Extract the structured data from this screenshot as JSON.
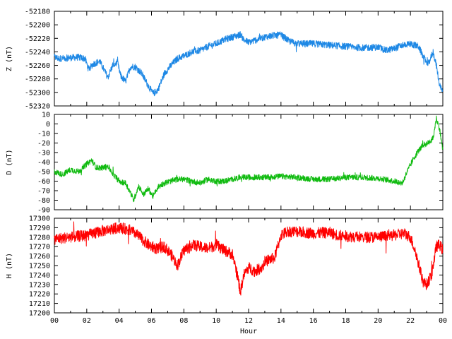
{
  "chart_data": [
    {
      "type": "line",
      "ylabel": "Z (nT)",
      "ylim": [
        -52320,
        -52180
      ],
      "yticks": [
        -52180,
        -52200,
        -52220,
        -52240,
        -52260,
        -52280,
        -52300,
        -52320
      ],
      "xlim": [
        0,
        24
      ],
      "color": "#1e88e5",
      "noise": 5,
      "series": [
        {
          "x": [
            0,
            0.3,
            0.8,
            1.5,
            1.9,
            2.1,
            2.4,
            2.8,
            3.1,
            3.3,
            3.6,
            3.9,
            4.1,
            4.4,
            4.7,
            5.0,
            5.4,
            5.8,
            6.1,
            6.4,
            6.8,
            7.2,
            7.6,
            8.0,
            8.5,
            9.0,
            9.5,
            10.0,
            10.5,
            11.0,
            11.3,
            11.5,
            11.7,
            12.0,
            12.5,
            13.0,
            13.5,
            14.0,
            14.5,
            15.0,
            16.0,
            17.0,
            18.0,
            19.0,
            20.0,
            20.5,
            21.0,
            21.5,
            22.0,
            22.5,
            22.8,
            23.1,
            23.4,
            23.6,
            23.8,
            24.0
          ],
          "values": [
            -52248,
            -52250,
            -52249,
            -52248,
            -52250,
            -52265,
            -52258,
            -52254,
            -52268,
            -52278,
            -52260,
            -52256,
            -52276,
            -52284,
            -52262,
            -52262,
            -52272,
            -52290,
            -52302,
            -52296,
            -52272,
            -52260,
            -52250,
            -52246,
            -52240,
            -52238,
            -52232,
            -52228,
            -52222,
            -52218,
            -52216,
            -52214,
            -52222,
            -52226,
            -52222,
            -52218,
            -52216,
            -52215,
            -52224,
            -52228,
            -52228,
            -52230,
            -52232,
            -52234,
            -52233,
            -52238,
            -52235,
            -52230,
            -52228,
            -52232,
            -52248,
            -52258,
            -52240,
            -52260,
            -52290,
            -52300
          ]
        }
      ]
    },
    {
      "type": "line",
      "ylabel": "D (nT)",
      "ylim": [
        -90,
        10
      ],
      "yticks": [
        10,
        0,
        -10,
        -20,
        -30,
        -40,
        -50,
        -60,
        -70,
        -80,
        -90
      ],
      "xlim": [
        0,
        24
      ],
      "color": "#11bb11",
      "noise": 3,
      "series": [
        {
          "x": [
            0,
            0.5,
            1.0,
            1.5,
            2.0,
            2.3,
            2.6,
            3.0,
            3.3,
            3.6,
            4.0,
            4.4,
            4.7,
            4.9,
            5.2,
            5.5,
            5.8,
            6.1,
            6.4,
            6.8,
            7.2,
            7.6,
            8.0,
            8.5,
            9.0,
            9.5,
            10.0,
            10.5,
            11.0,
            11.5,
            12.0,
            13.0,
            14.0,
            15.0,
            16.0,
            17.0,
            18.0,
            19.0,
            20.0,
            21.0,
            21.5,
            21.8,
            22.2,
            22.5,
            22.8,
            23.1,
            23.4,
            23.6,
            23.8,
            24.0
          ],
          "values": [
            -50,
            -53,
            -48,
            -50,
            -42,
            -38,
            -46,
            -46,
            -44,
            -52,
            -60,
            -62,
            -72,
            -80,
            -65,
            -74,
            -68,
            -76,
            -66,
            -62,
            -60,
            -58,
            -58,
            -60,
            -62,
            -58,
            -60,
            -60,
            -58,
            -56,
            -56,
            -56,
            -55,
            -56,
            -58,
            -58,
            -56,
            -56,
            -57,
            -60,
            -62,
            -50,
            -36,
            -28,
            -22,
            -20,
            -15,
            6,
            -5,
            -28
          ]
        }
      ]
    },
    {
      "type": "line",
      "ylabel": "H (nT)",
      "xlabel": "Hour",
      "ylim": [
        17200,
        17300
      ],
      "yticks": [
        17300,
        17290,
        17280,
        17270,
        17260,
        17250,
        17240,
        17230,
        17220,
        17210,
        17200
      ],
      "xlim": [
        0,
        24
      ],
      "xticks": [
        "00",
        "02",
        "04",
        "06",
        "08",
        "10",
        "12",
        "14",
        "16",
        "18",
        "20",
        "22",
        "00"
      ],
      "color": "#ff0000",
      "noise": 6,
      "series": [
        {
          "x": [
            0,
            1.0,
            2.0,
            2.8,
            3.4,
            4.0,
            4.6,
            5.0,
            5.4,
            5.8,
            6.3,
            6.8,
            7.2,
            7.6,
            8.0,
            8.5,
            9.0,
            9.5,
            10.0,
            10.5,
            11.0,
            11.3,
            11.5,
            11.7,
            12.0,
            12.4,
            12.8,
            13.2,
            13.6,
            14.0,
            14.4,
            15.0,
            16.0,
            17.0,
            17.5,
            18.0,
            19.0,
            20.0,
            21.0,
            21.6,
            22.0,
            22.3,
            22.6,
            22.8,
            23.0,
            23.3,
            23.6,
            23.8,
            24.0
          ],
          "values": [
            17278,
            17280,
            17282,
            17286,
            17288,
            17290,
            17288,
            17284,
            17278,
            17272,
            17268,
            17270,
            17262,
            17250,
            17266,
            17272,
            17270,
            17268,
            17272,
            17266,
            17262,
            17240,
            17222,
            17240,
            17248,
            17244,
            17248,
            17256,
            17258,
            17282,
            17286,
            17286,
            17284,
            17285,
            17282,
            17281,
            17280,
            17280,
            17282,
            17284,
            17280,
            17265,
            17245,
            17232,
            17230,
            17240,
            17270,
            17272,
            17266
          ]
        }
      ]
    }
  ]
}
